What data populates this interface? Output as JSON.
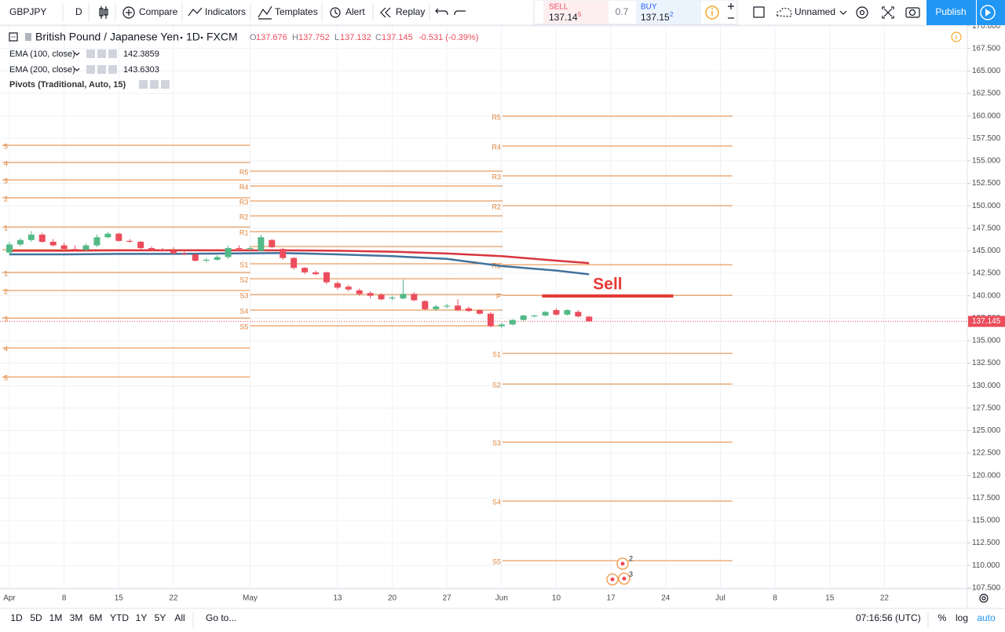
{
  "toolbar": {
    "symbol": "GBPJPY",
    "interval": "D",
    "buttons": [
      "Compare",
      "Indicators",
      "Templates",
      "Alert",
      "Replay"
    ],
    "sell": {
      "label": "SELL",
      "price": 137.14,
      "pip": 5
    },
    "spread": 0.7,
    "buy": {
      "label": "BUY",
      "price": 137.15,
      "pip": 2
    },
    "layout_name": "Unnamed",
    "publish": "Publish"
  },
  "legend": {
    "title": "British Pound / Japanese Yen",
    "interval": "1D",
    "exchange": "FXCM",
    "ohlc": [
      {
        "label": "O",
        "value": 137.676
      },
      {
        "label": "H",
        "value": 137.752
      },
      {
        "label": "L",
        "value": 137.132
      },
      {
        "label": "C",
        "value": 137.145
      }
    ],
    "change": "-0.531 (-0.39%)"
  },
  "chart_data": {
    "type": "candlestick",
    "x": [
      0,
      1,
      2,
      3,
      4,
      5,
      6,
      7,
      8,
      9,
      10,
      11,
      12,
      13,
      14,
      15,
      16,
      17,
      18,
      19,
      20,
      21,
      22,
      23,
      24,
      25,
      26,
      27,
      28,
      29,
      30,
      31,
      32,
      33,
      34,
      35,
      36,
      37,
      38,
      39,
      40,
      41,
      42,
      43,
      44,
      45,
      46,
      47,
      48,
      49,
      50,
      51,
      52,
      53
    ],
    "open": [
      144.8,
      145.7,
      146.2,
      146.8,
      146.0,
      145.6,
      145.2,
      145.1,
      145.6,
      146.5,
      146.9,
      146.1,
      146.0,
      145.3,
      145.1,
      145.0,
      144.7,
      144.6,
      143.9,
      144.0,
      144.3,
      145.3,
      145.2,
      145.0,
      146.2,
      145.2,
      144.2,
      143.1,
      142.6,
      142.6,
      141.4,
      141.0,
      140.6,
      140.3,
      140.1,
      139.7,
      139.7,
      140.2,
      139.4,
      138.5,
      138.8,
      138.9,
      138.6,
      138.4,
      138.0,
      136.6,
      136.8,
      137.3,
      137.7,
      137.8,
      138.4,
      137.9,
      138.2,
      137.676
    ],
    "high": [
      146.0,
      146.4,
      147.2,
      147.0,
      146.3,
      145.9,
      145.6,
      145.8,
      146.8,
      147.1,
      147.0,
      146.3,
      146.1,
      145.5,
      145.3,
      145.4,
      144.9,
      144.7,
      144.2,
      144.5,
      145.6,
      145.6,
      145.5,
      146.8,
      146.3,
      145.3,
      144.3,
      143.2,
      142.8,
      142.7,
      141.6,
      141.2,
      140.8,
      140.5,
      140.3,
      140.0,
      141.8,
      140.4,
      139.5,
      139.0,
      139.1,
      139.6,
      138.8,
      138.5,
      138.2,
      137.0,
      137.4,
      137.9,
      137.9,
      138.3,
      138.6,
      138.5,
      138.4,
      137.752
    ],
    "low": [
      144.5,
      145.5,
      146.0,
      145.9,
      145.5,
      145.0,
      144.9,
      145.0,
      145.4,
      146.4,
      146.0,
      145.9,
      145.2,
      145.0,
      144.9,
      144.6,
      144.5,
      143.8,
      143.7,
      143.9,
      144.1,
      145.0,
      145.0,
      144.9,
      145.3,
      144.0,
      142.9,
      142.4,
      142.3,
      141.3,
      140.7,
      140.5,
      140.0,
      139.7,
      139.5,
      139.5,
      139.6,
      139.4,
      138.4,
      138.3,
      138.6,
      138.3,
      138.2,
      137.9,
      136.5,
      136.4,
      136.7,
      137.2,
      137.6,
      137.7,
      137.8,
      137.8,
      137.6,
      137.132
    ],
    "close": [
      145.7,
      146.2,
      146.8,
      146.0,
      145.6,
      145.2,
      145.1,
      145.6,
      146.5,
      146.9,
      146.1,
      146.0,
      145.3,
      145.1,
      145.0,
      144.7,
      144.6,
      143.9,
      144.0,
      144.3,
      145.3,
      145.2,
      145.3,
      146.5,
      145.4,
      144.2,
      143.1,
      142.6,
      142.4,
      141.5,
      140.9,
      140.7,
      140.2,
      140.0,
      139.6,
      139.8,
      140.2,
      139.5,
      138.5,
      138.8,
      138.9,
      138.4,
      138.3,
      138.0,
      136.6,
      136.8,
      137.3,
      137.8,
      137.8,
      138.2,
      137.9,
      138.4,
      137.7,
      137.145
    ],
    "up_color": "#53b987",
    "down_color": "#eb4d5c",
    "series": [
      {
        "name": "EMA (100, close)",
        "color": "#41729c",
        "x": [
          0,
          5,
          10,
          15,
          20,
          25,
          30,
          35,
          40,
          45,
          50,
          53
        ],
        "values": [
          144.6,
          144.6,
          144.65,
          144.65,
          144.7,
          144.75,
          144.6,
          144.4,
          144.1,
          143.3,
          142.8,
          142.3859
        ]
      },
      {
        "name": "EMA (200, close)",
        "color": "#d9363e",
        "x": [
          0,
          5,
          10,
          15,
          20,
          25,
          30,
          35,
          40,
          45,
          50,
          53
        ],
        "values": [
          145.0,
          145.0,
          145.05,
          145.05,
          145.05,
          145.05,
          145.0,
          144.9,
          144.7,
          144.4,
          143.9,
          143.6303
        ]
      }
    ],
    "pivots": {
      "name": "Pivots (Traditional, Auto, 15)",
      "color": "#e0843a",
      "periods": [
        {
          "start": -0.65,
          "end": 22,
          "levels": [
            {
              "label": "5",
              "value": 156.74
            },
            {
              "label": "4",
              "value": 154.82
            },
            {
              "label": "3",
              "value": 152.89
            },
            {
              "label": "2",
              "value": 150.89
            },
            {
              "label": "1",
              "value": 147.65
            },
            {
              "label": null,
              "value": 145.12
            },
            {
              "label": "1",
              "value": 142.59
            },
            {
              "label": "2",
              "value": 140.58
            },
            {
              "label": "3",
              "value": 137.52
            },
            {
              "label": "4",
              "value": 134.2
            },
            {
              "label": "5",
              "value": 130.97
            }
          ]
        },
        {
          "start": 22,
          "end": 45.08,
          "levels": [
            {
              "label": "R5",
              "value": 153.86
            },
            {
              "label": "R4",
              "value": 152.2
            },
            {
              "label": "R3",
              "value": 150.54
            },
            {
              "label": "R2",
              "value": 148.88
            },
            {
              "label": "R1",
              "value": 147.13
            },
            {
              "label": null,
              "value": 145.47
            },
            {
              "label": "S1",
              "value": 143.55
            },
            {
              "label": "S2",
              "value": 141.89
            },
            {
              "label": "S3",
              "value": 140.14
            },
            {
              "label": "S4",
              "value": 138.4
            },
            {
              "label": "S5",
              "value": 136.65
            }
          ]
        },
        {
          "start": 45.08,
          "end": 66.1,
          "levels": [
            {
              "label": "R5",
              "value": 159.97
            },
            {
              "label": "R4",
              "value": 156.65
            },
            {
              "label": "R3",
              "value": 153.33
            },
            {
              "label": "R2",
              "value": 150.01
            },
            {
              "label": "R1",
              "value": 143.46
            },
            {
              "label": "P",
              "value": 140.05
            },
            {
              "label": "S1",
              "value": 133.59
            },
            {
              "label": "S2",
              "value": 130.18
            },
            {
              "label": "S3",
              "value": 123.72
            },
            {
              "label": "S4",
              "value": 117.17
            },
            {
              "label": "S5",
              "value": 110.53
            }
          ]
        }
      ]
    },
    "annotation": {
      "text": "Sell",
      "value": 139.97,
      "x": [
        48.7,
        60.7
      ],
      "color": "#e53935"
    },
    "event_counts": [
      2,
      3
    ],
    "xlim": [
      -0.86,
      87.58
    ],
    "ylim": [
      107.4,
      170.1
    ],
    "xticks": [
      {
        "value": 0,
        "label": "Apr"
      },
      {
        "value": 5,
        "label": "8"
      },
      {
        "value": 10,
        "label": "15"
      },
      {
        "value": 15,
        "label": "22"
      },
      {
        "value": 22,
        "label": "May"
      },
      {
        "value": 30,
        "label": "13"
      },
      {
        "value": 35,
        "label": "20"
      },
      {
        "value": 40,
        "label": "27"
      },
      {
        "value": 45,
        "label": "Jun"
      },
      {
        "value": 50,
        "label": "10"
      },
      {
        "value": 55,
        "label": "17"
      },
      {
        "value": 60,
        "label": "24"
      },
      {
        "value": 65,
        "label": "Jul"
      },
      {
        "value": 70,
        "label": "8"
      },
      {
        "value": 75,
        "label": "15"
      },
      {
        "value": 80,
        "label": "22"
      }
    ],
    "yticks": [
      {
        "value": 107.5,
        "label": "107.500"
      },
      {
        "value": 110,
        "label": "110.000"
      },
      {
        "value": 112.5,
        "label": "112.500"
      },
      {
        "value": 115,
        "label": "115.000"
      },
      {
        "value": 117.5,
        "label": "117.500"
      },
      {
        "value": 120,
        "label": "120.000"
      },
      {
        "value": 122.5,
        "label": "122.500"
      },
      {
        "value": 125,
        "label": "125.000"
      },
      {
        "value": 127.5,
        "label": "127.500"
      },
      {
        "value": 130,
        "label": "130.000"
      },
      {
        "value": 132.5,
        "label": "132.500"
      },
      {
        "value": 135,
        "label": "135.000"
      },
      {
        "value": 137.5,
        "label": "137.500"
      },
      {
        "value": 140,
        "label": "140.000"
      },
      {
        "value": 142.5,
        "label": "142.500"
      },
      {
        "value": 145,
        "label": "145.000"
      },
      {
        "value": 147.5,
        "label": "147.500"
      },
      {
        "value": 150,
        "label": "150.000"
      },
      {
        "value": 152.5,
        "label": "152.500"
      },
      {
        "value": 155,
        "label": "155.000"
      },
      {
        "value": 157.5,
        "label": "157.500"
      },
      {
        "value": 160,
        "label": "160.000"
      },
      {
        "value": 162.5,
        "label": "162.500"
      },
      {
        "value": 165,
        "label": "165.000"
      },
      {
        "value": 167.5,
        "label": "167.500"
      },
      {
        "value": 170,
        "label": "170.000"
      }
    ],
    "grid": true
  },
  "bottom_bar": {
    "ranges": [
      "1D",
      "5D",
      "1M",
      "3M",
      "6M",
      "YTD",
      "1Y",
      "5Y",
      "All"
    ],
    "goto": "Go to...",
    "time": "07:16:56 (UTC)",
    "options": [
      "%",
      "log",
      "auto"
    ]
  }
}
